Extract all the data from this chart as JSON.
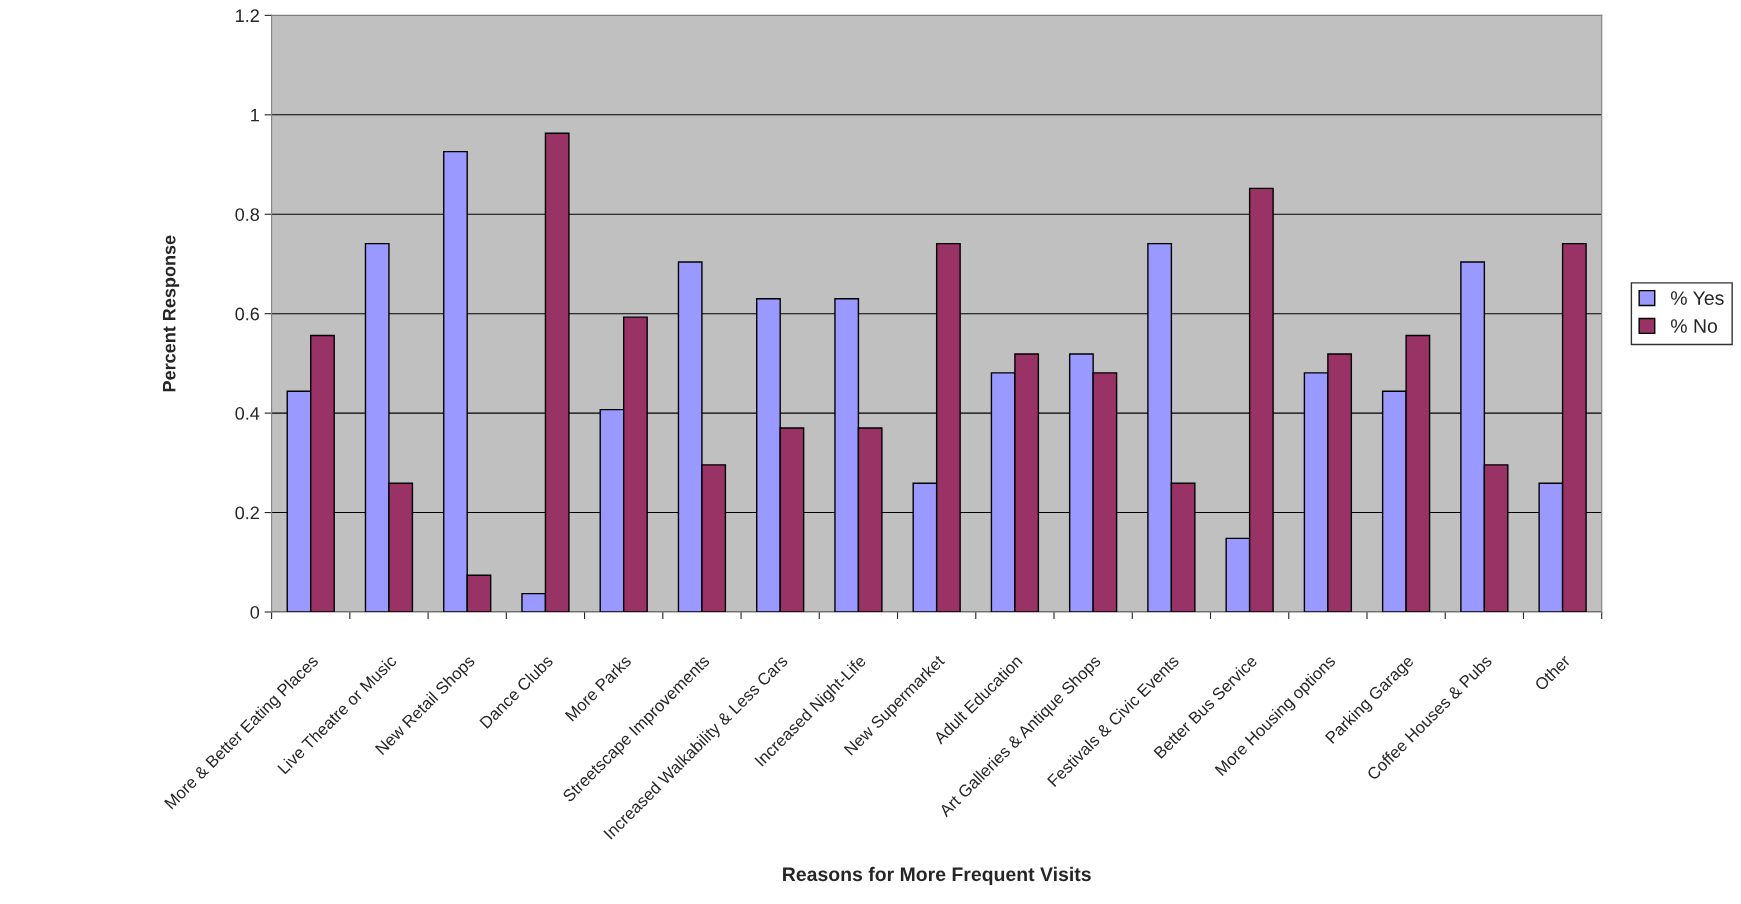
{
  "chart_data": {
    "type": "bar",
    "xlabel": "Reasons for More Frequent Visits",
    "ylabel": "Percent Response",
    "categories": [
      "More & Better Eating Places",
      "Live Theatre or Music",
      "New Retail Shops",
      "Dance Clubs",
      "More Parks",
      "Streetscape Improvements",
      "Increased Walkability & Less Cars",
      "Increased Night-Life",
      "New Supermarket",
      "Adult Education",
      "Art Galleries & Antique Shops",
      "Festivals & Civic Events",
      "Better Bus Service",
      "More Housing options",
      "Parking Garage",
      "Coffee Houses & Pubs",
      "Other"
    ],
    "series": [
      {
        "name": "% Yes",
        "color": "#9999ff",
        "values": [
          0.444,
          0.741,
          0.926,
          0.037,
          0.407,
          0.704,
          0.63,
          0.63,
          0.259,
          0.481,
          0.519,
          0.741,
          0.148,
          0.481,
          0.444,
          0.704,
          0.259
        ]
      },
      {
        "name": "% No",
        "color": "#993366",
        "values": [
          0.556,
          0.259,
          0.074,
          0.963,
          0.593,
          0.296,
          0.37,
          0.37,
          0.741,
          0.519,
          0.481,
          0.259,
          0.852,
          0.519,
          0.556,
          0.296,
          0.741
        ]
      }
    ],
    "ylim": [
      0,
      1.2
    ],
    "yticks": [
      0,
      0.2,
      0.4,
      0.6,
      0.8,
      1,
      1.2
    ],
    "grid": "y",
    "legend": "right"
  }
}
